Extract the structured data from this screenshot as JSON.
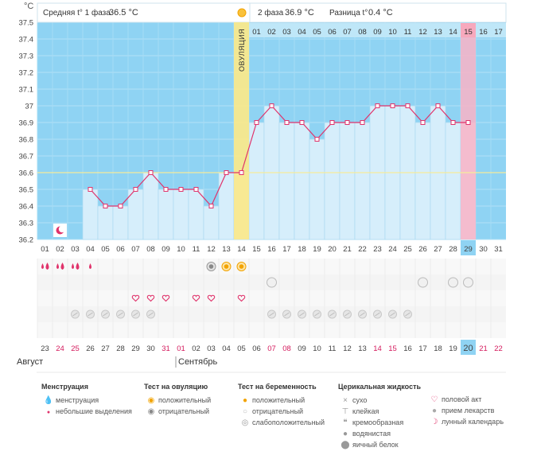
{
  "header": {
    "phase1": "Средняя t° 1 фаза",
    "phase1_value": "36.5 °C",
    "phase2": "2 фаза",
    "phase2_value": "36.9 °C",
    "diff": "Разница t°",
    "diff_value": "0.4 °C"
  },
  "ovulation_label": "ОВУЛЯЦИЯ",
  "chart_data": {
    "type": "area",
    "ylabel": "°C",
    "ylim": [
      36.2,
      37.5
    ],
    "y_ticks": [
      "37.5",
      "37.4",
      "37.3",
      "37.2",
      "37.1",
      "37",
      "36.9",
      "36.8",
      "36.7",
      "36.6",
      "36.5",
      "36.4",
      "36.3",
      "36.2"
    ],
    "cycle_days": [
      "01",
      "02",
      "03",
      "04",
      "05",
      "06",
      "07",
      "08",
      "09",
      "10",
      "11",
      "12",
      "13",
      "14",
      "15",
      "16",
      "17",
      "18",
      "19",
      "20",
      "21",
      "22",
      "23",
      "24",
      "25",
      "26",
      "27",
      "28",
      "29",
      "30",
      "31"
    ],
    "phase2_days": [
      "01",
      "02",
      "03",
      "04",
      "05",
      "06",
      "07",
      "08",
      "09",
      "10",
      "11",
      "12",
      "13",
      "14",
      "15",
      "16",
      "17"
    ],
    "temperatures": [
      null,
      null,
      null,
      36.5,
      36.4,
      36.4,
      36.5,
      36.6,
      36.5,
      36.5,
      36.5,
      36.4,
      36.6,
      36.6,
      36.9,
      37.0,
      36.9,
      36.9,
      36.8,
      36.9,
      36.9,
      36.9,
      37.0,
      37.0,
      37.0,
      36.9,
      37.0,
      36.9,
      36.9,
      null,
      null
    ],
    "coverline": 36.6,
    "ovulation_day": 14,
    "highlight_day": 29,
    "highlight_phase2_day": "15"
  },
  "markers": {
    "menstruation": [
      [
        1,
        "big"
      ],
      [
        2,
        "big"
      ],
      [
        3,
        "big"
      ],
      [
        4,
        "small"
      ]
    ],
    "ovulation_test": [
      [
        12,
        "neg"
      ],
      [
        13,
        "pos"
      ],
      [
        14,
        "pos"
      ]
    ],
    "pregnancy_test": [
      16,
      26,
      28,
      29
    ],
    "intercourse": [
      7,
      8,
      9,
      11,
      12,
      14
    ],
    "medication": [
      3,
      4,
      5,
      6,
      7,
      8,
      16,
      17,
      18,
      19,
      20,
      21,
      22,
      23,
      24,
      25
    ]
  },
  "calendar": {
    "dates": [
      "23",
      "24",
      "25",
      "26",
      "27",
      "28",
      "29",
      "30",
      "31",
      "01",
      "02",
      "03",
      "04",
      "05",
      "06",
      "07",
      "08",
      "09",
      "10",
      "11",
      "12",
      "13",
      "14",
      "15",
      "16",
      "17",
      "18",
      "19",
      "20",
      "21",
      "22"
    ],
    "red_indices": [
      1,
      2,
      8,
      9,
      15,
      16,
      22,
      23,
      29,
      30
    ],
    "highlight_index": 28,
    "month1": "Август",
    "month2": "Сентябрь"
  },
  "legend": {
    "mens": {
      "title": "Менструация",
      "items": [
        "менструация",
        "небольшие выделения"
      ]
    },
    "ovul": {
      "title": "Тест на овуляцию",
      "items": [
        "положительный",
        "отрицательный"
      ]
    },
    "preg": {
      "title": "Тест на беременность",
      "items": [
        "положительный",
        "отрицательный",
        "слабоположительный"
      ]
    },
    "cerv": {
      "title": "Церикальная жидкость",
      "items": [
        "сухо",
        "клейкая",
        "кремообразная",
        "водянистая",
        "яичный белок"
      ]
    },
    "other": {
      "items": [
        "половой акт",
        "прием лекарств",
        "лунный календарь"
      ]
    }
  }
}
